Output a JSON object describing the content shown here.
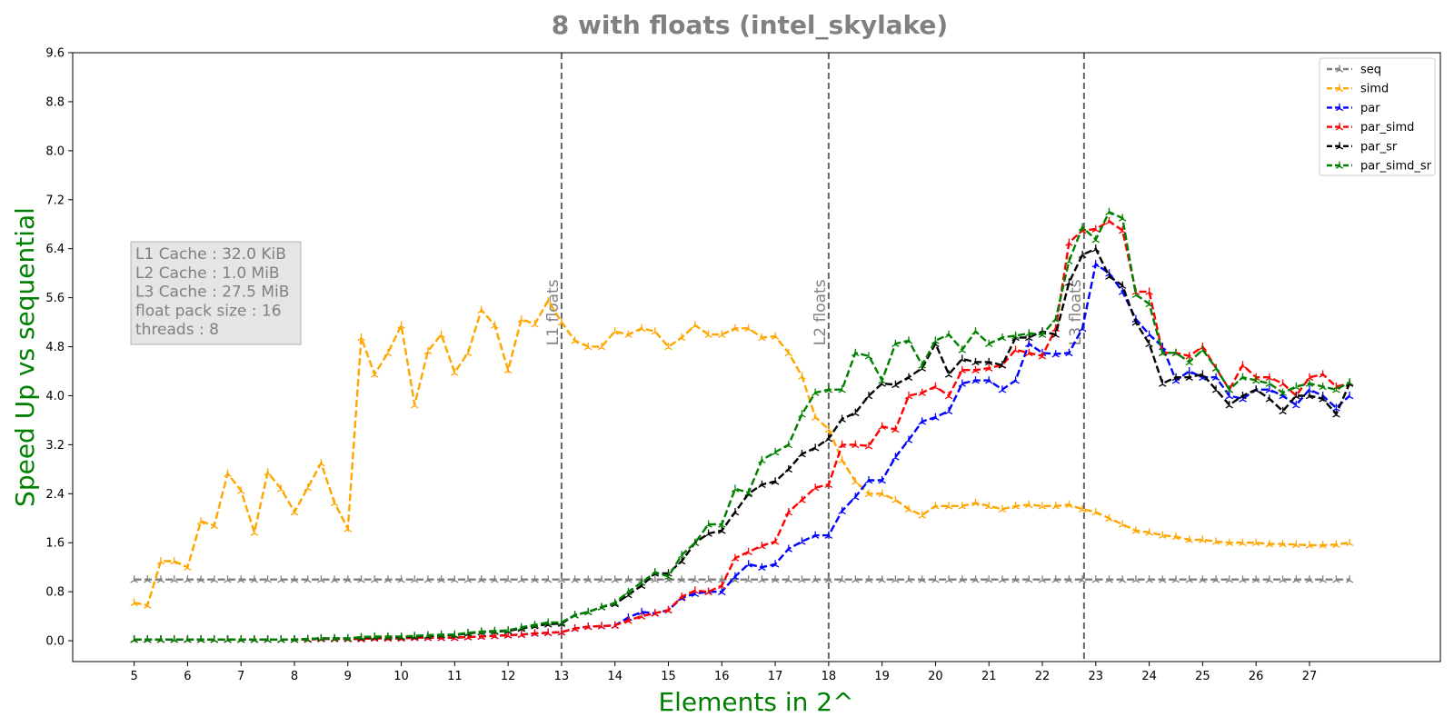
{
  "chart_data": {
    "type": "line",
    "title": "8 with floats  (intel_skylake)",
    "xlabel": "Elements in 2^",
    "ylabel": "Speed Up vs sequential",
    "xlim": [
      3.85,
      29.45
    ],
    "ylim": [
      -0.34,
      9.6
    ],
    "xticks": [
      "5",
      "6",
      "7",
      "8",
      "9",
      "10",
      "11",
      "12",
      "13",
      "14",
      "15",
      "16",
      "17",
      "18",
      "19",
      "20",
      "21",
      "22",
      "23",
      "24",
      "25",
      "26",
      "27"
    ],
    "yticks": [
      "0.0",
      "0.8",
      "1.6",
      "2.4",
      "3.2",
      "4.0",
      "4.8",
      "5.6",
      "6.4",
      "7.2",
      "8.0",
      "8.8",
      "9.6"
    ],
    "grid": false,
    "legend_position": "top-right",
    "x": [
      5.0,
      5.25,
      5.5,
      5.75,
      6.0,
      6.25,
      6.5,
      6.75,
      7.0,
      7.25,
      7.5,
      7.75,
      8.0,
      8.25,
      8.5,
      8.75,
      9.0,
      9.25,
      9.5,
      9.75,
      10.0,
      10.25,
      10.5,
      10.75,
      11.0,
      11.25,
      11.5,
      11.75,
      12.0,
      12.25,
      12.5,
      12.75,
      13.0,
      13.25,
      13.5,
      13.75,
      14.0,
      14.25,
      14.5,
      14.75,
      15.0,
      15.25,
      15.5,
      15.75,
      16.0,
      16.25,
      16.5,
      16.75,
      17.0,
      17.25,
      17.5,
      17.75,
      18.0,
      18.25,
      18.5,
      18.75,
      19.0,
      19.25,
      19.5,
      19.75,
      20.0,
      20.25,
      20.5,
      20.75,
      21.0,
      21.25,
      21.5,
      21.75,
      22.0,
      22.25,
      22.5,
      22.75,
      23.0,
      23.25,
      23.5,
      23.75,
      24.0,
      24.25,
      24.5,
      24.75,
      25.0,
      25.25,
      25.5,
      25.75,
      26.0,
      26.25,
      26.5,
      26.75,
      27.0,
      27.25,
      27.5,
      27.75
    ],
    "series": [
      {
        "name": "seq",
        "color": "#808080",
        "values": [
          1.0,
          1.0,
          1.0,
          1.0,
          1.0,
          1.0,
          1.0,
          1.0,
          1.0,
          1.0,
          1.0,
          1.0,
          1.0,
          1.0,
          1.0,
          1.0,
          1.0,
          1.0,
          1.0,
          1.0,
          1.0,
          1.0,
          1.0,
          1.0,
          1.0,
          1.0,
          1.0,
          1.0,
          1.0,
          1.0,
          1.0,
          1.0,
          1.0,
          1.0,
          1.0,
          1.0,
          1.0,
          1.0,
          1.0,
          1.0,
          1.0,
          1.0,
          1.0,
          1.0,
          1.0,
          1.0,
          1.0,
          1.0,
          1.0,
          1.0,
          1.0,
          1.0,
          1.0,
          1.0,
          1.0,
          1.0,
          1.0,
          1.0,
          1.0,
          1.0,
          1.0,
          1.0,
          1.0,
          1.0,
          1.0,
          1.0,
          1.0,
          1.0,
          1.0,
          1.0,
          1.0,
          1.0,
          1.0,
          1.0,
          1.0,
          1.0,
          1.0,
          1.0,
          1.0,
          1.0,
          1.0,
          1.0,
          1.0,
          1.0,
          1.0,
          1.0,
          1.0,
          1.0,
          1.0,
          1.0,
          1.0,
          1.0
        ]
      },
      {
        "name": "simd",
        "color": "#ffa500",
        "values": [
          0.62,
          0.58,
          1.3,
          1.3,
          1.2,
          1.95,
          1.88,
          2.73,
          2.45,
          1.77,
          2.75,
          2.48,
          2.1,
          2.5,
          2.9,
          2.25,
          1.83,
          4.95,
          4.35,
          4.7,
          5.15,
          3.85,
          4.73,
          5.0,
          4.38,
          4.7,
          5.4,
          5.15,
          4.42,
          5.25,
          5.17,
          5.55,
          5.2,
          4.9,
          4.8,
          4.8,
          5.05,
          5.0,
          5.1,
          5.05,
          4.8,
          4.95,
          5.15,
          5.0,
          5.0,
          5.1,
          5.1,
          4.95,
          4.97,
          4.7,
          4.32,
          3.65,
          3.45,
          2.95,
          2.6,
          2.4,
          2.4,
          2.3,
          2.15,
          2.05,
          2.2,
          2.2,
          2.2,
          2.25,
          2.2,
          2.15,
          2.2,
          2.22,
          2.2,
          2.2,
          2.22,
          2.15,
          2.1,
          2.0,
          1.9,
          1.8,
          1.77,
          1.72,
          1.7,
          1.65,
          1.65,
          1.62,
          1.6,
          1.6,
          1.6,
          1.58,
          1.58,
          1.57,
          1.56,
          1.56,
          1.57,
          1.6
        ]
      },
      {
        "name": "par",
        "color": "#0000ff",
        "values": [
          0.02,
          0.02,
          0.02,
          0.02,
          0.02,
          0.02,
          0.02,
          0.02,
          0.02,
          0.02,
          0.02,
          0.02,
          0.02,
          0.02,
          0.03,
          0.03,
          0.03,
          0.03,
          0.04,
          0.04,
          0.04,
          0.05,
          0.05,
          0.05,
          0.05,
          0.06,
          0.07,
          0.08,
          0.09,
          0.1,
          0.12,
          0.13,
          0.14,
          0.2,
          0.23,
          0.24,
          0.25,
          0.38,
          0.47,
          0.45,
          0.5,
          0.7,
          0.77,
          0.8,
          0.8,
          1.05,
          1.25,
          1.2,
          1.25,
          1.5,
          1.62,
          1.72,
          1.72,
          2.12,
          2.35,
          2.62,
          2.62,
          3.0,
          3.28,
          3.58,
          3.65,
          3.75,
          4.2,
          4.25,
          4.25,
          4.1,
          4.25,
          4.85,
          4.7,
          4.68,
          4.7,
          5.1,
          6.15,
          6.0,
          5.7,
          5.25,
          5.0,
          4.8,
          4.25,
          4.4,
          4.3,
          4.3,
          4.0,
          3.95,
          4.1,
          4.1,
          4.0,
          3.85,
          4.1,
          4.0,
          3.8,
          4.0
        ]
      },
      {
        "name": "par_simd",
        "color": "#ff0000",
        "values": [
          0.02,
          0.02,
          0.02,
          0.02,
          0.02,
          0.02,
          0.02,
          0.02,
          0.02,
          0.02,
          0.02,
          0.02,
          0.02,
          0.02,
          0.03,
          0.03,
          0.03,
          0.03,
          0.04,
          0.04,
          0.04,
          0.05,
          0.05,
          0.05,
          0.05,
          0.06,
          0.07,
          0.08,
          0.09,
          0.1,
          0.12,
          0.13,
          0.14,
          0.2,
          0.23,
          0.24,
          0.25,
          0.33,
          0.4,
          0.45,
          0.5,
          0.72,
          0.82,
          0.8,
          0.9,
          1.35,
          1.45,
          1.55,
          1.62,
          2.1,
          2.3,
          2.5,
          2.55,
          3.2,
          3.2,
          3.18,
          3.5,
          3.45,
          4.0,
          4.05,
          4.15,
          4.0,
          4.42,
          4.42,
          4.45,
          4.5,
          4.75,
          4.7,
          4.65,
          5.1,
          6.5,
          6.7,
          6.72,
          6.85,
          6.7,
          5.7,
          5.7,
          4.7,
          4.7,
          4.65,
          4.8,
          4.45,
          4.1,
          4.5,
          4.3,
          4.3,
          4.2,
          4.0,
          4.3,
          4.35,
          4.15,
          4.2
        ]
      },
      {
        "name": "par_sr",
        "color": "#000000",
        "values": [
          0.02,
          0.02,
          0.02,
          0.02,
          0.02,
          0.02,
          0.02,
          0.02,
          0.02,
          0.02,
          0.02,
          0.02,
          0.02,
          0.03,
          0.04,
          0.04,
          0.04,
          0.05,
          0.06,
          0.06,
          0.06,
          0.07,
          0.08,
          0.09,
          0.09,
          0.12,
          0.14,
          0.15,
          0.16,
          0.2,
          0.24,
          0.27,
          0.28,
          0.42,
          0.47,
          0.55,
          0.6,
          0.75,
          0.9,
          1.1,
          1.1,
          1.3,
          1.6,
          1.75,
          1.8,
          2.1,
          2.4,
          2.55,
          2.6,
          2.8,
          3.05,
          3.15,
          3.3,
          3.62,
          3.72,
          4.0,
          4.2,
          4.18,
          4.3,
          4.45,
          4.85,
          4.35,
          4.6,
          4.55,
          4.55,
          4.5,
          4.95,
          4.95,
          5.05,
          5.0,
          5.85,
          6.3,
          6.4,
          5.95,
          5.8,
          5.2,
          4.85,
          4.2,
          4.3,
          4.3,
          4.35,
          4.1,
          3.85,
          4.0,
          4.1,
          3.95,
          3.75,
          4.0,
          4.0,
          3.95,
          3.7,
          4.2
        ]
      },
      {
        "name": "par_simd_sr",
        "color": "#008000",
        "values": [
          0.02,
          0.02,
          0.02,
          0.02,
          0.02,
          0.02,
          0.02,
          0.02,
          0.02,
          0.02,
          0.02,
          0.02,
          0.02,
          0.03,
          0.04,
          0.04,
          0.04,
          0.06,
          0.07,
          0.07,
          0.07,
          0.08,
          0.09,
          0.1,
          0.1,
          0.13,
          0.15,
          0.16,
          0.17,
          0.22,
          0.26,
          0.3,
          0.3,
          0.42,
          0.47,
          0.55,
          0.62,
          0.8,
          0.95,
          1.12,
          1.05,
          1.4,
          1.6,
          1.9,
          1.9,
          2.48,
          2.42,
          2.95,
          3.08,
          3.2,
          3.7,
          4.05,
          4.1,
          4.1,
          4.7,
          4.65,
          4.25,
          4.85,
          4.9,
          4.5,
          4.9,
          5.0,
          4.75,
          5.05,
          4.85,
          4.95,
          4.98,
          5.02,
          5.0,
          5.25,
          6.2,
          6.75,
          6.55,
          7.0,
          6.9,
          5.65,
          5.5,
          4.7,
          4.7,
          4.55,
          4.75,
          4.45,
          4.1,
          4.3,
          4.25,
          4.2,
          4.05,
          4.15,
          4.2,
          4.15,
          4.1,
          4.22
        ]
      }
    ],
    "vlines": [
      {
        "x": 13.0,
        "label": "L1 floats"
      },
      {
        "x": 18.0,
        "label": "L2 floats"
      },
      {
        "x": 22.78,
        "label": "L3 floats"
      }
    ],
    "info_box": [
      "L1 Cache : 32.0 KiB",
      "L2 Cache : 1.0 MiB",
      "L3 Cache : 27.5 MiB",
      "float pack size : 16",
      "threads : 8"
    ]
  }
}
